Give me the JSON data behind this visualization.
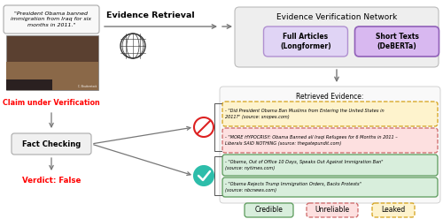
{
  "claim_text": "\"President Obama banned\nimmigration from Iraq for six\nmonths in 2011.\"",
  "claim_label": "Claim under Verification",
  "verdict_label": "Verdict: False",
  "evidence_retrieval_label": "Evidence Retrieval",
  "evn_label": "Evidence Verification Network",
  "full_articles_label": "Full Articles\n(Longformer)",
  "short_texts_label": "Short Texts\n(DeBERTa)",
  "retrieved_evidence_label": "Retrieved Evidence:",
  "fact_checking_label": "Fact Checking",
  "shutterstock_label": "C. Shutterstock",
  "evidence_items": [
    {
      "text": "- \"Did President Obama Ban Muslims from Entering the United States in\n2011?\" (source: snopes.com)",
      "color": "#fef3cd",
      "border": "#d4a017",
      "border_style": "dashed",
      "label": "leaked"
    },
    {
      "text": "- \"MORE HYPOCRISY: Obama Banned all Iraqi Refugees for 6 Months in 2011 –\nLiberals SAID NOTHING (source: thegatepundit.com)",
      "color": "#fde0e0",
      "border": "#cc6666",
      "border_style": "dashed",
      "label": "unreliable"
    },
    {
      "text": "- \"Obama, Out of Office 10 Days, Speaks Out Against Immigration Ban\"\n(source: nytimes.com)",
      "color": "#d8eedc",
      "border": "#5a9a5a",
      "border_style": "solid",
      "label": "credible"
    },
    {
      "text": "- \"Obama Rejects Trump Immigration Orders, Backs Protests\"\n(source: nbcnews.com)",
      "color": "#d8eedc",
      "border": "#5a9a5a",
      "border_style": "solid",
      "label": "credible"
    }
  ],
  "legend_items": [
    {
      "label": "Credible",
      "color": "#d8eedc",
      "border": "#5a9a5a",
      "border_style": "solid"
    },
    {
      "label": "Unreliable",
      "color": "#fde0e0",
      "border": "#cc6666",
      "border_style": "dashed"
    },
    {
      "label": "Leaked",
      "color": "#fef3cd",
      "border": "#d4a017",
      "border_style": "dashed"
    }
  ],
  "bg_color": "#ffffff",
  "evn_bg": "#eeeeee",
  "fa_bg": "#e0d4f5",
  "fa_border": "#b090d0",
  "st_bg": "#d8b8f0",
  "st_border": "#9060b8",
  "arrow_color": "#777777",
  "box_bg": "#f0f0f0",
  "box_border": "#aaaaaa"
}
